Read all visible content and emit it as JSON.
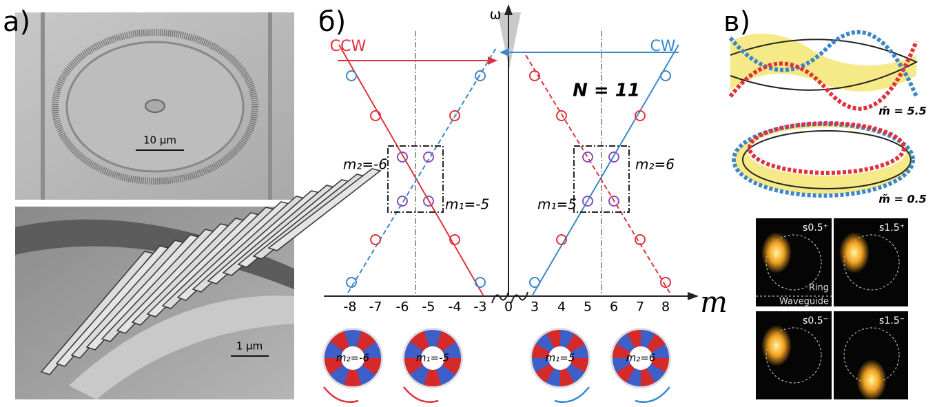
{
  "panel_a": {
    "label": "а)",
    "scale_top": "10 μm",
    "scale_bottom": "1 μm"
  },
  "panel_b": {
    "label": "б)",
    "axis_y": "ω",
    "axis_x": "m",
    "ccw": "CCW",
    "cw": "CW",
    "n_label": "N = 11",
    "ticks": [
      "-8",
      "-7",
      "-6",
      "-5",
      "-4",
      "-3",
      "0",
      "3",
      "4",
      "5",
      "6",
      "7",
      "8"
    ],
    "annotations": [
      "m₂=-6",
      "m₁=-5",
      "m₁=5",
      "m₂=6"
    ],
    "modes": [
      "m₂=-6",
      "m₁=-5",
      "m₁=5",
      "m₂=6"
    ]
  },
  "panel_c": {
    "label": "в)",
    "m_bar": "m̄ = 5.5",
    "m_tilde": "m̃ = 0.5",
    "images": [
      "s0.5⁺",
      "s1.5⁺",
      "s0.5⁻",
      "s1.5⁻"
    ],
    "ring": "Ring",
    "waveguide": "Waveguide"
  }
}
